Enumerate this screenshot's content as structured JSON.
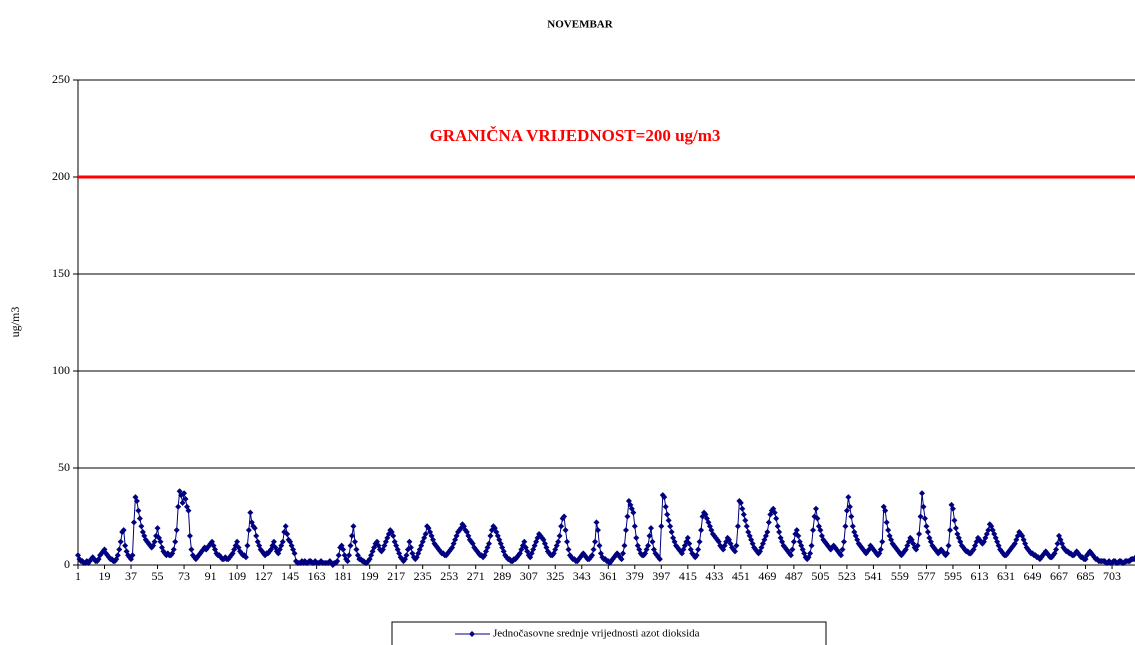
{
  "chart_data": {
    "type": "line",
    "title": "NOVEMBAR",
    "y_label": "ug/m3",
    "ylim": [
      0,
      250
    ],
    "yticks": [
      0,
      50,
      100,
      150,
      200,
      250
    ],
    "grid": true,
    "legend": "bottom",
    "marker": "diamond",
    "limit": {
      "value": 200,
      "label": "GRANIČNA VRIJEDNOST=200 ug/m3",
      "color": "#ff0000"
    },
    "categories": [
      "1",
      null,
      null,
      null,
      null,
      null,
      null,
      null,
      null,
      null,
      null,
      null,
      null,
      null,
      null,
      null,
      null,
      null,
      "19",
      null,
      null,
      null,
      null,
      null,
      null,
      null,
      null,
      null,
      null,
      null,
      null,
      null,
      null,
      null,
      null,
      null,
      "37",
      null,
      null,
      null,
      null,
      null,
      null,
      null,
      null,
      null,
      null,
      null,
      null,
      null,
      null,
      null,
      null,
      null,
      "55",
      null,
      null,
      null,
      null,
      null,
      null,
      null,
      null,
      null,
      null,
      null,
      null,
      null,
      null,
      null,
      null,
      null,
      "73",
      null,
      null,
      null,
      null,
      null,
      null,
      null,
      null,
      null,
      null,
      null,
      null,
      null,
      null,
      null,
      null,
      null,
      "91",
      null,
      null,
      null,
      null,
      null,
      null,
      null,
      null,
      null,
      null,
      null,
      null,
      null,
      null,
      null,
      null,
      null,
      "109",
      null,
      null,
      null,
      null,
      null,
      null,
      null,
      null,
      null,
      null,
      null,
      null,
      null,
      null,
      null,
      null,
      null,
      "127",
      null,
      null,
      null,
      null,
      null,
      null,
      null,
      null,
      null,
      null,
      null,
      null,
      null,
      null,
      null,
      null,
      null,
      "145",
      null,
      null,
      null,
      null,
      null,
      null,
      null,
      null,
      null,
      null,
      null,
      null,
      null,
      null,
      null,
      null,
      null,
      "163",
      null,
      null,
      null,
      null,
      null,
      null,
      null,
      null,
      null,
      null,
      null,
      null,
      null,
      null,
      null,
      null,
      null,
      "181",
      null,
      null,
      null,
      null,
      null,
      null,
      null,
      null,
      null,
      null,
      null,
      null,
      null,
      null,
      null,
      null,
      null,
      "199",
      null,
      null,
      null,
      null,
      null,
      null,
      null,
      null,
      null,
      null,
      null,
      null,
      null,
      null,
      null,
      null,
      null,
      "217",
      null,
      null,
      null,
      null,
      null,
      null,
      null,
      null,
      null,
      null,
      null,
      null,
      null,
      null,
      null,
      null,
      null,
      "235",
      null,
      null,
      null,
      null,
      null,
      null,
      null,
      null,
      null,
      null,
      null,
      null,
      null,
      null,
      null,
      null,
      null,
      "253",
      null,
      null,
      null,
      null,
      null,
      null,
      null,
      null,
      null,
      null,
      null,
      null,
      null,
      null,
      null,
      null,
      null,
      "271",
      null,
      null,
      null,
      null,
      null,
      null,
      null,
      null,
      null,
      null,
      null,
      null,
      null,
      null,
      null,
      null,
      null,
      "289",
      null,
      null,
      null,
      null,
      null,
      null,
      null,
      null,
      null,
      null,
      null,
      null,
      null,
      null,
      null,
      null,
      null,
      "307",
      null,
      null,
      null,
      null,
      null,
      null,
      null,
      null,
      null,
      null,
      null,
      null,
      null,
      null,
      null,
      null,
      null,
      "325",
      null,
      null,
      null,
      null,
      null,
      null,
      null,
      null,
      null,
      null,
      null,
      null,
      null,
      null,
      null,
      null,
      null,
      "343",
      null,
      null,
      null,
      null,
      null,
      null,
      null,
      null,
      null,
      null,
      null,
      null,
      null,
      null,
      null,
      null,
      null,
      "361",
      null,
      null,
      null,
      null,
      null,
      null,
      null,
      null,
      null,
      null,
      null,
      null,
      null,
      null,
      null,
      null,
      null,
      "379",
      null,
      null,
      null,
      null,
      null,
      null,
      null,
      null,
      null,
      null,
      null,
      null,
      null,
      null,
      null,
      null,
      null,
      "397",
      null,
      null,
      null,
      null,
      null,
      null,
      null,
      null,
      null,
      null,
      null,
      null,
      null,
      null,
      null,
      null,
      null,
      "415",
      null,
      null,
      null,
      null,
      null,
      null,
      null,
      null,
      null,
      null,
      null,
      null,
      null,
      null,
      null,
      null,
      null,
      "433",
      null,
      null,
      null,
      null,
      null,
      null,
      null,
      null,
      null,
      null,
      null,
      null,
      null,
      null,
      null,
      null,
      null,
      "451",
      null,
      null,
      null,
      null,
      null,
      null,
      null,
      null,
      null,
      null,
      null,
      null,
      null,
      null,
      null,
      null,
      null,
      "469",
      null,
      null,
      null,
      null,
      null,
      null,
      null,
      null,
      null,
      null,
      null,
      null,
      null,
      null,
      null,
      null,
      null,
      "487",
      null,
      null,
      null,
      null,
      null,
      null,
      null,
      null,
      null,
      null,
      null,
      null,
      null,
      null,
      null,
      null,
      null,
      "505",
      null,
      null,
      null,
      null,
      null,
      null,
      null,
      null,
      null,
      null,
      null,
      null,
      null,
      null,
      null,
      null,
      null,
      "523",
      null,
      null,
      null,
      null,
      null,
      null,
      null,
      null,
      null,
      null,
      null,
      null,
      null,
      null,
      null,
      null,
      null,
      "541",
      null,
      null,
      null,
      null,
      null,
      null,
      null,
      null,
      null,
      null,
      null,
      null,
      null,
      null,
      null,
      null,
      null,
      "559",
      null,
      null,
      null,
      null,
      null,
      null,
      null,
      null,
      null,
      null,
      null,
      null,
      null,
      null,
      null,
      null,
      null,
      "577",
      null,
      null,
      null,
      null,
      null,
      null,
      null,
      null,
      null,
      null,
      null,
      null,
      null,
      null,
      null,
      null,
      null,
      "595",
      null,
      null,
      null,
      null,
      null,
      null,
      null,
      null,
      null,
      null,
      null,
      null,
      null,
      null,
      null,
      null,
      null,
      "613",
      null,
      null,
      null,
      null,
      null,
      null,
      null,
      null,
      null,
      null,
      null,
      null,
      null,
      null,
      null,
      null,
      null,
      "631",
      null,
      null,
      null,
      null,
      null,
      null,
      null,
      null,
      null,
      null,
      null,
      null,
      null,
      null,
      null,
      null,
      null,
      "649",
      null,
      null,
      null,
      null,
      null,
      null,
      null,
      null,
      null,
      null,
      null,
      null,
      null,
      null,
      null,
      null,
      null,
      "667",
      null,
      null,
      null,
      null,
      null,
      null,
      null,
      null,
      null,
      null,
      null,
      null,
      null,
      null,
      null,
      null,
      null,
      "685",
      null,
      null,
      null,
      null,
      null,
      null,
      null,
      null,
      null,
      null,
      null,
      null,
      null,
      null,
      null,
      null,
      null,
      "703",
      null,
      null,
      null,
      null,
      null,
      null,
      null,
      null,
      null,
      null,
      null,
      null,
      null,
      null,
      null,
      null,
      null
    ],
    "series": [
      {
        "name": "Jednočasovne srednje vrijednosti azot dioksida",
        "color": "#000080",
        "values": [
          5,
          3,
          2,
          2,
          1,
          1,
          2,
          1,
          2,
          3,
          4,
          3,
          2,
          2,
          3,
          5,
          6,
          7,
          8,
          6,
          5,
          4,
          3,
          3,
          2,
          2,
          3,
          5,
          8,
          12,
          17,
          18,
          10,
          7,
          5,
          4,
          3,
          5,
          22,
          35,
          33,
          28,
          24,
          20,
          17,
          15,
          13,
          12,
          11,
          10,
          9,
          10,
          12,
          15,
          19,
          14,
          12,
          9,
          7,
          6,
          5,
          6,
          5,
          5,
          6,
          8,
          12,
          18,
          30,
          38,
          36,
          32,
          37,
          34,
          30,
          28,
          15,
          8,
          5,
          4,
          3,
          4,
          5,
          6,
          7,
          8,
          9,
          8,
          9,
          10,
          11,
          12,
          10,
          8,
          6,
          5,
          5,
          4,
          3,
          3,
          4,
          3,
          3,
          4,
          5,
          6,
          8,
          10,
          12,
          9,
          7,
          6,
          5,
          5,
          4,
          10,
          18,
          27,
          22,
          20,
          19,
          15,
          12,
          10,
          8,
          7,
          6,
          5,
          6,
          6,
          7,
          8,
          10,
          12,
          9,
          7,
          6,
          8,
          10,
          12,
          17,
          20,
          16,
          13,
          12,
          10,
          8,
          6,
          2,
          1,
          1,
          1,
          2,
          1,
          2,
          1,
          1,
          2,
          2,
          1,
          1,
          2,
          1,
          1,
          1,
          2,
          1,
          1,
          1,
          1,
          1,
          2,
          1,
          0,
          1,
          1,
          2,
          5,
          9,
          10,
          8,
          5,
          3,
          2,
          5,
          10,
          15,
          20,
          12,
          8,
          5,
          3,
          3,
          2,
          2,
          1,
          1,
          2,
          3,
          5,
          7,
          9,
          11,
          12,
          10,
          8,
          7,
          8,
          10,
          12,
          14,
          16,
          18,
          17,
          15,
          12,
          10,
          8,
          6,
          4,
          3,
          2,
          3,
          5,
          8,
          12,
          9,
          6,
          4,
          3,
          4,
          6,
          8,
          10,
          12,
          14,
          16,
          20,
          19,
          17,
          15,
          13,
          11,
          10,
          9,
          8,
          7,
          6,
          6,
          5,
          5,
          6,
          7,
          8,
          9,
          11,
          13,
          15,
          17,
          18,
          19,
          21,
          20,
          18,
          17,
          15,
          13,
          12,
          11,
          9,
          8,
          7,
          6,
          5,
          5,
          4,
          5,
          7,
          9,
          11,
          15,
          18,
          20,
          19,
          17,
          15,
          13,
          11,
          9,
          7,
          5,
          4,
          3,
          3,
          2,
          2,
          3,
          3,
          4,
          5,
          6,
          8,
          10,
          12,
          9,
          7,
          5,
          4,
          6,
          8,
          10,
          12,
          14,
          16,
          15,
          14,
          13,
          11,
          9,
          7,
          6,
          5,
          5,
          6,
          8,
          10,
          12,
          15,
          20,
          24,
          25,
          18,
          12,
          8,
          5,
          4,
          3,
          3,
          2,
          2,
          3,
          4,
          5,
          6,
          5,
          4,
          3,
          3,
          4,
          5,
          8,
          12,
          22,
          18,
          10,
          6,
          4,
          3,
          3,
          2,
          2,
          1,
          2,
          3,
          4,
          5,
          6,
          5,
          4,
          3,
          6,
          10,
          18,
          25,
          33,
          31,
          29,
          27,
          20,
          14,
          10,
          8,
          6,
          5,
          5,
          6,
          8,
          10,
          15,
          19,
          12,
          8,
          6,
          5,
          4,
          3,
          20,
          36,
          35,
          30,
          26,
          23,
          20,
          17,
          14,
          12,
          10,
          9,
          8,
          7,
          6,
          8,
          10,
          12,
          14,
          11,
          8,
          6,
          5,
          4,
          5,
          8,
          12,
          18,
          25,
          27,
          26,
          24,
          22,
          20,
          18,
          16,
          15,
          14,
          13,
          12,
          10,
          9,
          8,
          10,
          12,
          14,
          13,
          11,
          9,
          8,
          7,
          10,
          20,
          33,
          32,
          29,
          26,
          23,
          20,
          17,
          15,
          13,
          11,
          9,
          8,
          7,
          6,
          7,
          9,
          11,
          13,
          15,
          17,
          22,
          26,
          28,
          29,
          27,
          24,
          20,
          17,
          14,
          12,
          10,
          9,
          8,
          7,
          6,
          5,
          8,
          12,
          16,
          18,
          15,
          12,
          10,
          8,
          6,
          4,
          3,
          4,
          6,
          10,
          18,
          25,
          29,
          24,
          20,
          18,
          15,
          13,
          12,
          11,
          10,
          9,
          8,
          9,
          10,
          9,
          8,
          7,
          6,
          5,
          8,
          12,
          20,
          28,
          35,
          30,
          25,
          20,
          17,
          15,
          13,
          11,
          10,
          9,
          8,
          7,
          6,
          7,
          8,
          10,
          9,
          8,
          7,
          6,
          5,
          6,
          8,
          12,
          30,
          28,
          22,
          18,
          15,
          13,
          11,
          10,
          9,
          8,
          7,
          6,
          5,
          6,
          7,
          8,
          10,
          12,
          14,
          13,
          11,
          9,
          8,
          10,
          16,
          25,
          37,
          30,
          24,
          20,
          17,
          14,
          12,
          10,
          9,
          8,
          7,
          6,
          7,
          8,
          7,
          6,
          5,
          6,
          10,
          18,
          31,
          29,
          23,
          19,
          16,
          14,
          12,
          10,
          9,
          8,
          7,
          7,
          6,
          6,
          7,
          8,
          10,
          12,
          14,
          13,
          12,
          11,
          12,
          14,
          16,
          18,
          21,
          20,
          18,
          16,
          14,
          12,
          10,
          8,
          7,
          6,
          5,
          5,
          6,
          7,
          8,
          9,
          10,
          11,
          13,
          15,
          17,
          16,
          15,
          13,
          11,
          9,
          8,
          7,
          6,
          6,
          5,
          5,
          4,
          4,
          3,
          4,
          5,
          6,
          7,
          6,
          5,
          4,
          4,
          5,
          6,
          8,
          11,
          15,
          13,
          11,
          9,
          8,
          7,
          7,
          6,
          6,
          5,
          5,
          6,
          7,
          6,
          5,
          4,
          4,
          3,
          3,
          5,
          6,
          7,
          6,
          5,
          4,
          3,
          3,
          2,
          2,
          2,
          2,
          2,
          1,
          1,
          2,
          1,
          1,
          2,
          2,
          1,
          1,
          2,
          2,
          1,
          1,
          2,
          2,
          2,
          2,
          3,
          3,
          3,
          4,
          3
        ]
      }
    ]
  }
}
